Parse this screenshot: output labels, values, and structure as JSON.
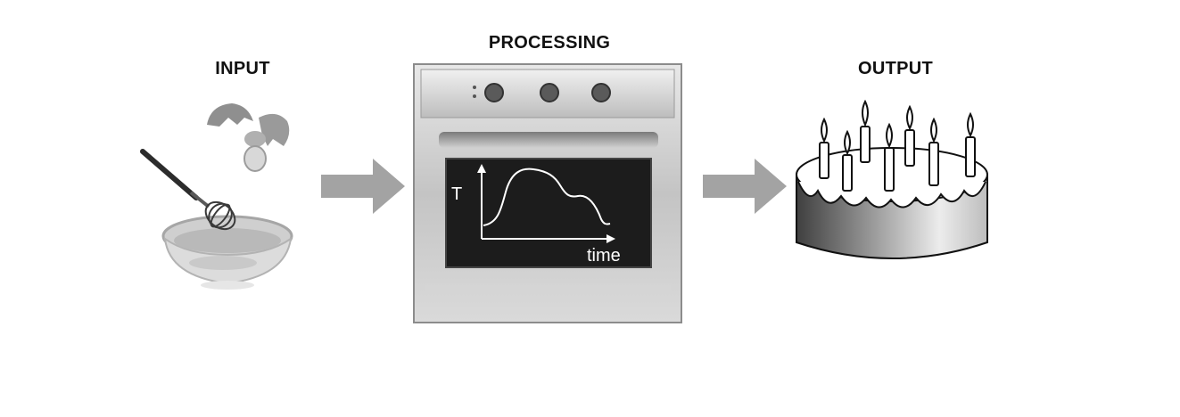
{
  "labels": {
    "input": "INPUT",
    "processing": "PROCESSING",
    "output": "OUTPUT"
  },
  "graph": {
    "y_axis_label": "T",
    "x_axis_label": "time"
  },
  "icons": {
    "input": [
      "egg-icon",
      "whisk-icon",
      "mixing-bowl-icon"
    ],
    "arrows": [
      "arrow-right-icon",
      "arrow-right-icon"
    ],
    "processing": [
      "oven-icon",
      "temperature-time-graph"
    ],
    "output": [
      "birthday-cake-icon",
      "candle-icon"
    ]
  },
  "colors": {
    "arrow": "#a3a3a3",
    "oven_steel": "#c9c9c9",
    "oven_window": "#1c1c1c",
    "label_text": "#111111"
  }
}
